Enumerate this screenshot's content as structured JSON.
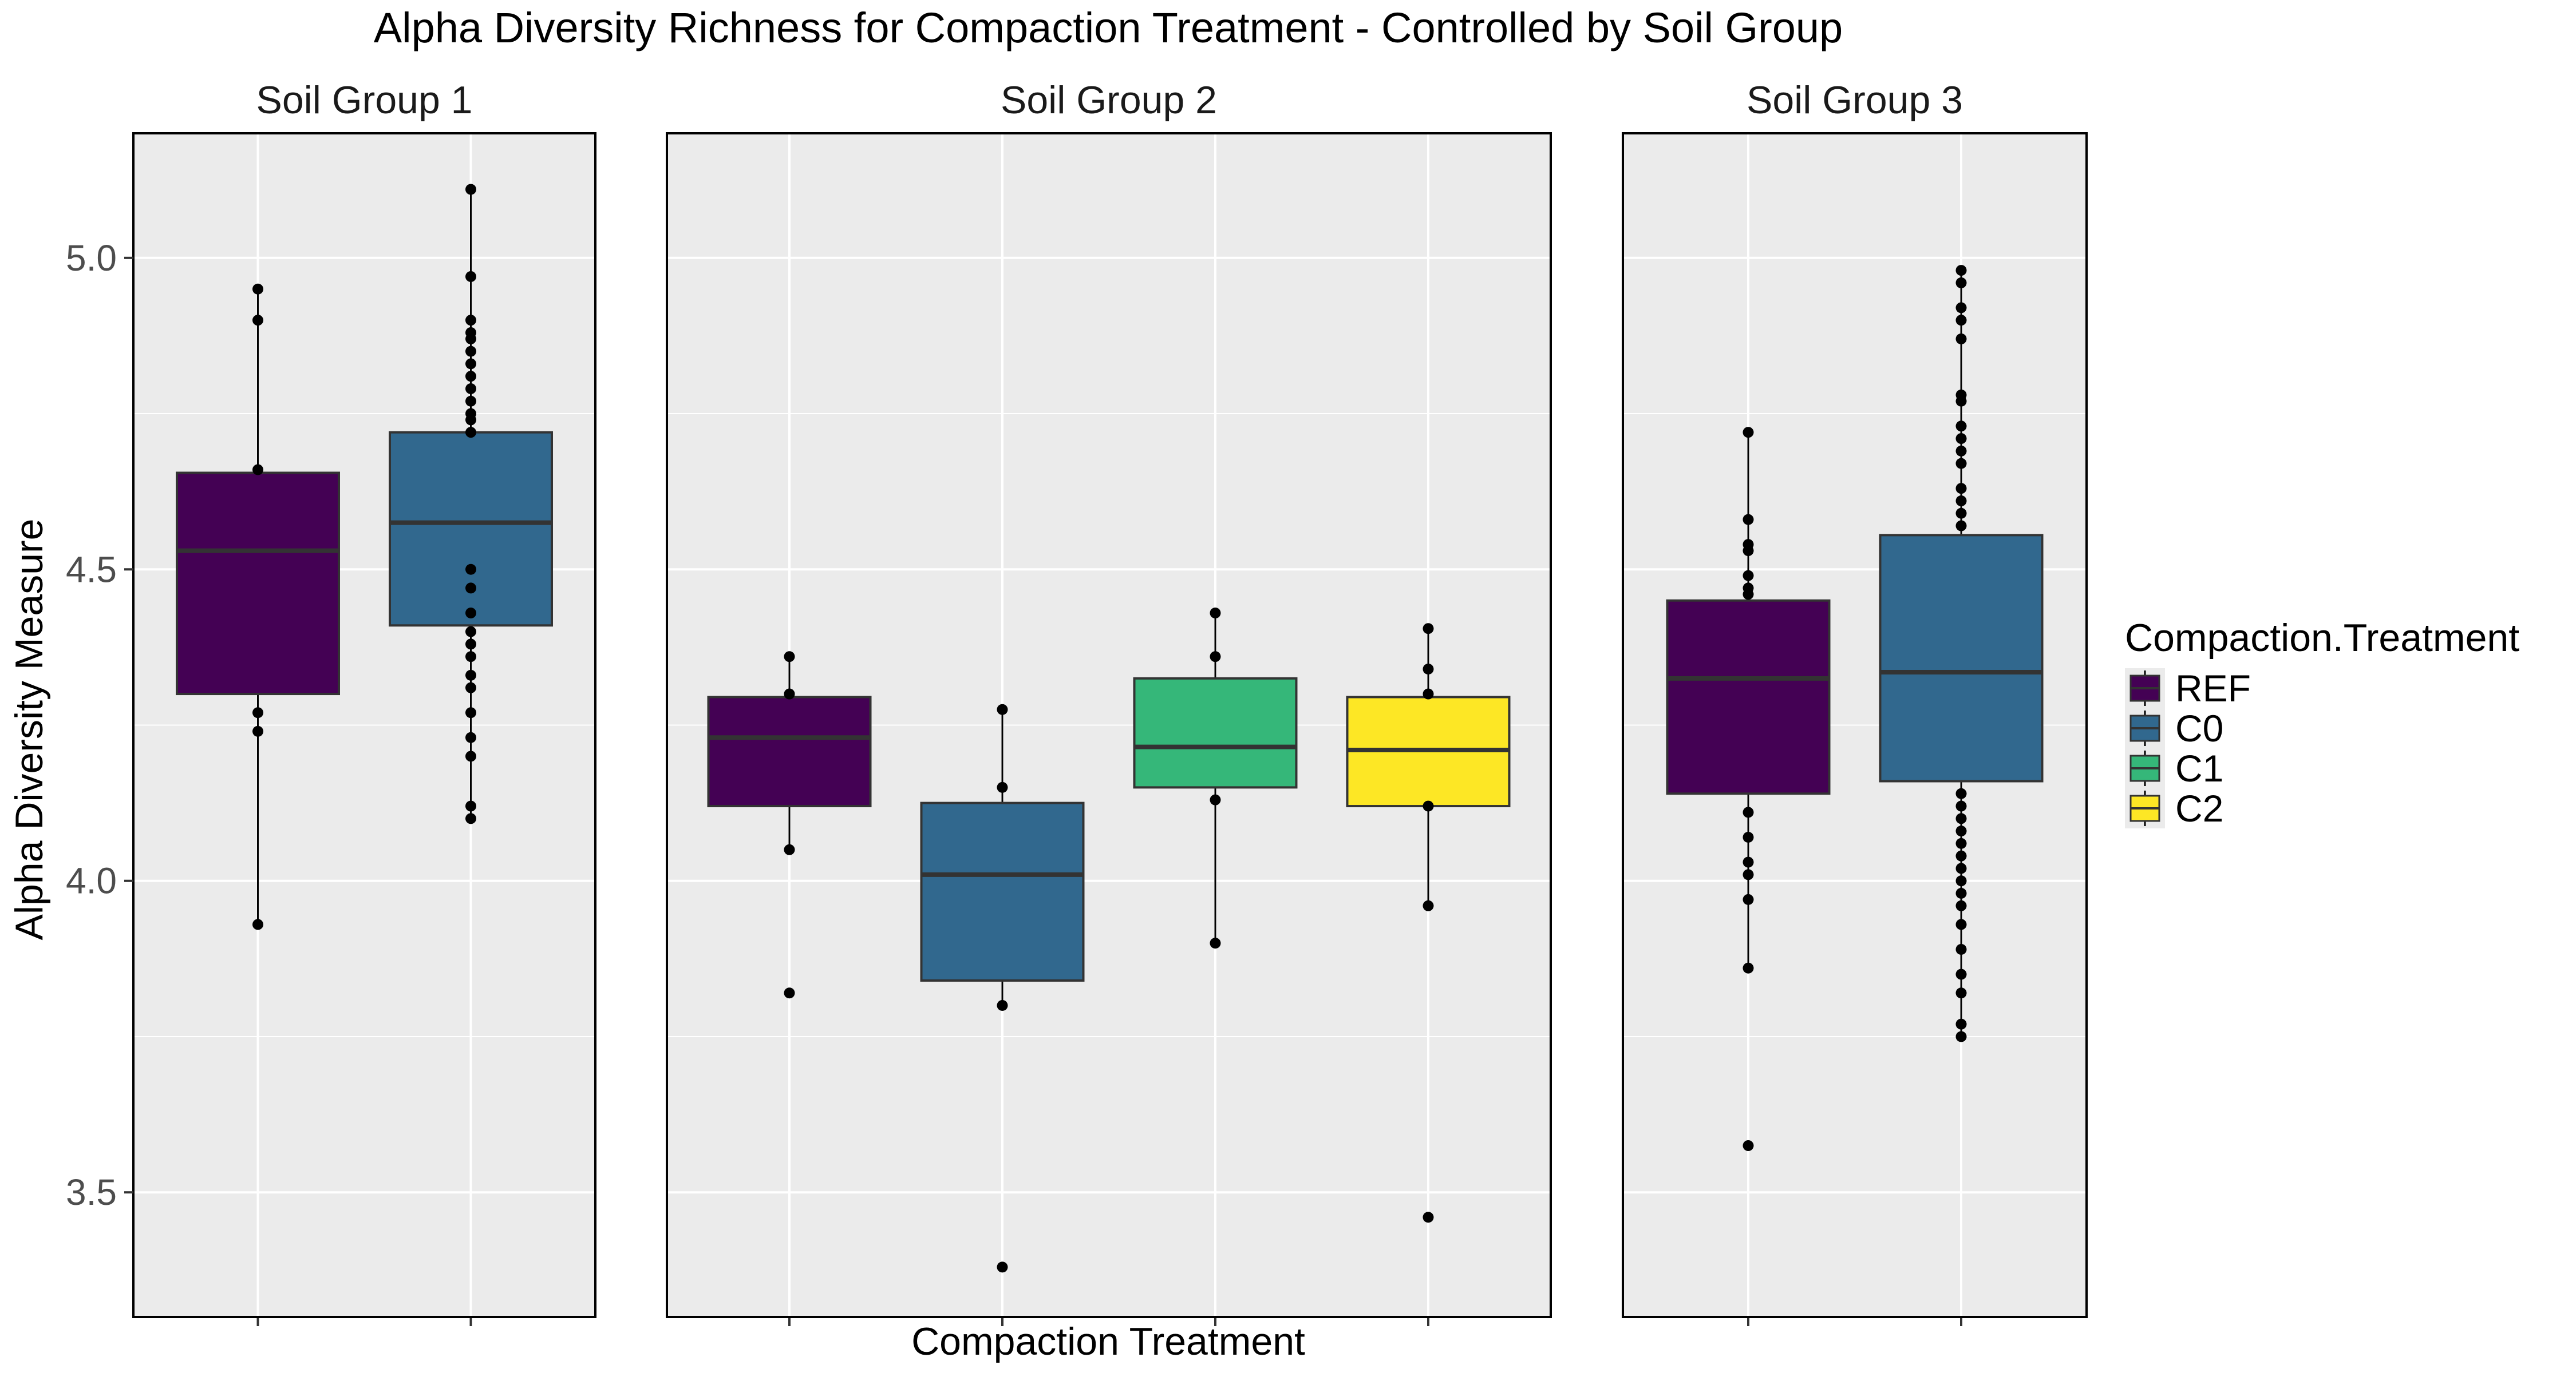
{
  "chart_data": {
    "type": "box",
    "title": "Alpha Diversity Richness for Compaction Treatment - Controlled by Soil Group",
    "xlabel": "Compaction Treatment",
    "ylabel": "Alpha Diversity Measure",
    "ylim": [
      3.3,
      5.2
    ],
    "yticks": [
      3.5,
      4.0,
      4.5,
      5.0
    ],
    "ytick_labels": [
      "3.5",
      "4.0",
      "4.5",
      "5.0"
    ],
    "grid": true,
    "legend": {
      "title": "Compaction.Treatment",
      "position": "right",
      "entries": [
        {
          "label": "REF",
          "color": "#440154"
        },
        {
          "label": "C0",
          "color": "#31688E"
        },
        {
          "label": "C1",
          "color": "#35B779"
        },
        {
          "label": "C2",
          "color": "#FDE725"
        }
      ]
    },
    "panels": [
      {
        "label": "Soil Group 1",
        "groups": [
          {
            "treatment": "REF",
            "color": "#440154",
            "q1": 4.3,
            "median": 4.53,
            "q3": 4.655,
            "whisker_low": 3.93,
            "whisker_high": 4.95,
            "points": [
              4.95,
              4.9,
              4.66,
              4.27,
              4.24,
              3.93
            ]
          },
          {
            "treatment": "C0",
            "color": "#31688E",
            "q1": 4.41,
            "median": 4.575,
            "q3": 4.72,
            "whisker_low": 4.1,
            "whisker_high": 5.11,
            "points": [
              5.11,
              4.97,
              4.9,
              4.88,
              4.87,
              4.85,
              4.83,
              4.81,
              4.79,
              4.77,
              4.75,
              4.74,
              4.72,
              4.5,
              4.47,
              4.43,
              4.4,
              4.38,
              4.36,
              4.33,
              4.31,
              4.27,
              4.23,
              4.2,
              4.12,
              4.1
            ]
          }
        ]
      },
      {
        "label": "Soil Group 2",
        "groups": [
          {
            "treatment": "REF",
            "color": "#440154",
            "q1": 4.12,
            "median": 4.23,
            "q3": 4.295,
            "whisker_low": 4.05,
            "whisker_high": 4.36,
            "points": [
              4.36,
              4.3,
              4.05,
              3.82
            ]
          },
          {
            "treatment": "C0",
            "color": "#31688E",
            "q1": 3.84,
            "median": 4.01,
            "q3": 4.125,
            "whisker_low": 3.8,
            "whisker_high": 4.275,
            "points": [
              4.275,
              4.15,
              3.8,
              3.38
            ]
          },
          {
            "treatment": "C1",
            "color": "#35B779",
            "q1": 4.15,
            "median": 4.215,
            "q3": 4.325,
            "whisker_low": 3.9,
            "whisker_high": 4.43,
            "points": [
              4.43,
              4.36,
              4.13,
              3.9
            ]
          },
          {
            "treatment": "C2",
            "color": "#FDE725",
            "q1": 4.12,
            "median": 4.21,
            "q3": 4.295,
            "whisker_low": 3.96,
            "whisker_high": 4.405,
            "points": [
              4.405,
              4.34,
              4.3,
              4.12,
              3.96,
              3.46
            ]
          }
        ]
      },
      {
        "label": "Soil Group 3",
        "groups": [
          {
            "treatment": "REF",
            "color": "#440154",
            "q1": 4.14,
            "median": 4.325,
            "q3": 4.45,
            "whisker_low": 3.86,
            "whisker_high": 4.72,
            "points": [
              4.72,
              4.58,
              4.54,
              4.53,
              4.49,
              4.47,
              4.46,
              4.11,
              4.07,
              4.03,
              4.01,
              3.97,
              3.86,
              3.575
            ]
          },
          {
            "treatment": "C0",
            "color": "#31688E",
            "q1": 4.16,
            "median": 4.335,
            "q3": 4.555,
            "whisker_low": 3.75,
            "whisker_high": 4.98,
            "points": [
              4.98,
              4.96,
              4.92,
              4.9,
              4.87,
              4.78,
              4.77,
              4.73,
              4.71,
              4.69,
              4.67,
              4.63,
              4.61,
              4.59,
              4.57,
              4.14,
              4.12,
              4.1,
              4.08,
              4.06,
              4.04,
              4.02,
              4.0,
              3.98,
              3.96,
              3.93,
              3.89,
              3.85,
              3.82,
              3.77,
              3.75
            ]
          }
        ]
      }
    ]
  }
}
